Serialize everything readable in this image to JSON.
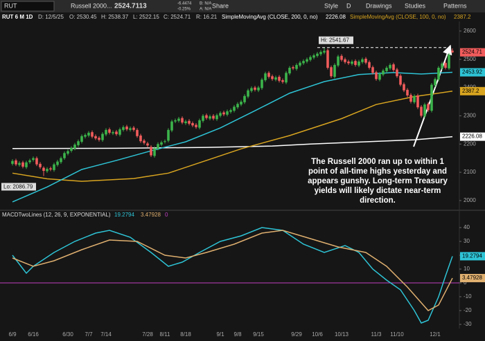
{
  "toolbar": {
    "symbol": "RUT",
    "name": "Russell 2000...",
    "last": "2524.7113",
    "change": "-6.4474",
    "change_pct": "-0.25%",
    "bid": "B: N/A",
    "ask": "A: N/A",
    "buttons": [
      "Share",
      "Style",
      "D",
      "Drawings",
      "Studies",
      "Patterns"
    ]
  },
  "header": {
    "title": "RUT 6 M 1D",
    "date": "D: 12/5/25",
    "open": "O: 2530.45",
    "high": "H: 2538.37",
    "low": "L: 2522.15",
    "close": "C: 2524.71",
    "range": "R: 16.21",
    "sma200": "SimpleMovingAvg (CLOSE, 200, 0, no)",
    "sma100": "SimpleMovingAvg (CLOSE, 100, 0, no)"
  },
  "annotation": "The Russell 2000 ran up to within 1 point of all-time highs yesterday and appears gunshy. Long-term Treasury yields will likely dictate near-term direction.",
  "chart_data": [
    {
      "type": "candlestick",
      "up_color": "#3cb44b",
      "down_color": "#f25c5c",
      "hi_label": "Hi: 2541.67",
      "lo_label": "Lo: 2086.79",
      "xlim": [
        -2,
        129
      ],
      "ylim": [
        1968,
        2634
      ],
      "yticks": [
        2000,
        2100,
        2200,
        2300,
        2400,
        2500,
        2600
      ],
      "xticks": [
        {
          "value": 0,
          "label": "6/9"
        },
        {
          "value": 6,
          "label": "6/16"
        },
        {
          "value": 16,
          "label": "6/30"
        },
        {
          "value": 22,
          "label": "7/7"
        },
        {
          "value": 27,
          "label": "7/14"
        },
        {
          "value": 39,
          "label": "7/28"
        },
        {
          "value": 44,
          "label": "8/11"
        },
        {
          "value": 50,
          "label": "8/18"
        },
        {
          "value": 60,
          "label": "9/1"
        },
        {
          "value": 65,
          "label": "9/8"
        },
        {
          "value": 71,
          "label": "9/15"
        },
        {
          "value": 82,
          "label": "9/29"
        },
        {
          "value": 88,
          "label": "10/6"
        },
        {
          "value": 95,
          "label": "10/13"
        },
        {
          "value": 105,
          "label": "11/3"
        },
        {
          "value": 111,
          "label": "11/10"
        },
        {
          "value": 122,
          "label": "12/1"
        }
      ],
      "candles": [
        [
          2130,
          2146,
          2124,
          2140
        ],
        [
          2142,
          2148,
          2122,
          2128
        ],
        [
          2126,
          2139,
          2120,
          2133
        ],
        [
          2135,
          2141,
          2114,
          2120
        ],
        [
          2118,
          2141,
          2112,
          2135
        ],
        [
          2136,
          2148,
          2130,
          2142
        ],
        [
          2144,
          2156,
          2138,
          2150
        ],
        [
          2150,
          2156,
          2122,
          2128
        ],
        [
          2130,
          2136,
          2112,
          2118
        ],
        [
          2116,
          2121,
          2086.79,
          2105
        ],
        [
          2104,
          2118,
          2098,
          2112
        ],
        [
          2114,
          2120,
          2104,
          2110
        ],
        [
          2108,
          2134,
          2102,
          2128
        ],
        [
          2126,
          2144,
          2120,
          2138
        ],
        [
          2136,
          2156,
          2130,
          2150
        ],
        [
          2150,
          2174,
          2144,
          2168
        ],
        [
          2166,
          2181,
          2160,
          2175
        ],
        [
          2176,
          2192,
          2170,
          2186
        ],
        [
          2184,
          2204,
          2178,
          2198
        ],
        [
          2196,
          2216,
          2190,
          2210
        ],
        [
          2208,
          2234,
          2202,
          2228
        ],
        [
          2226,
          2238,
          2220,
          2232
        ],
        [
          2230,
          2246,
          2224,
          2240
        ],
        [
          2242,
          2248,
          2220,
          2226
        ],
        [
          2228,
          2234,
          2214,
          2220
        ],
        [
          2222,
          2228,
          2209,
          2215
        ],
        [
          2214,
          2242,
          2208,
          2236
        ],
        [
          2234,
          2256,
          2228,
          2250
        ],
        [
          2252,
          2258,
          2234,
          2240
        ],
        [
          2238,
          2248,
          2232,
          2242
        ],
        [
          2244,
          2250,
          2229,
          2235
        ],
        [
          2233,
          2258,
          2227,
          2252
        ],
        [
          2250,
          2266,
          2244,
          2260
        ],
        [
          2262,
          2268,
          2246,
          2252
        ],
        [
          2250,
          2262,
          2244,
          2256
        ],
        [
          2258,
          2264,
          2244,
          2250
        ],
        [
          2250,
          2256,
          2222,
          2228
        ],
        [
          2230,
          2236,
          2204,
          2210
        ],
        [
          2212,
          2218,
          2198,
          2204
        ],
        [
          2202,
          2208,
          2189,
          2195
        ],
        [
          2190,
          2196,
          2154,
          2160
        ],
        [
          2158,
          2191,
          2152,
          2185
        ],
        [
          2184,
          2206,
          2178,
          2200
        ],
        [
          2198,
          2212,
          2192,
          2206
        ],
        [
          2208,
          2216,
          2202,
          2210
        ],
        [
          2212,
          2256,
          2206,
          2250
        ],
        [
          2248,
          2286,
          2242,
          2280
        ],
        [
          2280,
          2290,
          2274,
          2284
        ],
        [
          2282,
          2296,
          2276,
          2290
        ],
        [
          2292,
          2298,
          2270,
          2276
        ],
        [
          2274,
          2286,
          2268,
          2280
        ],
        [
          2282,
          2288,
          2266,
          2272
        ],
        [
          2274,
          2280,
          2260,
          2266
        ],
        [
          2268,
          2274,
          2254,
          2260
        ],
        [
          2258,
          2290,
          2252,
          2284
        ],
        [
          2282,
          2306,
          2276,
          2300
        ],
        [
          2302,
          2308,
          2286,
          2292
        ],
        [
          2290,
          2304,
          2284,
          2298
        ],
        [
          2300,
          2306,
          2284,
          2290
        ],
        [
          2288,
          2308,
          2282,
          2302
        ],
        [
          2300,
          2316,
          2294,
          2310
        ],
        [
          2312,
          2318,
          2299,
          2305
        ],
        [
          2304,
          2322,
          2298,
          2316
        ],
        [
          2314,
          2326,
          2308,
          2320
        ],
        [
          2318,
          2338,
          2312,
          2332
        ],
        [
          2330,
          2348,
          2324,
          2342
        ],
        [
          2340,
          2356,
          2334,
          2350
        ],
        [
          2348,
          2376,
          2342,
          2370
        ],
        [
          2368,
          2396,
          2362,
          2390
        ],
        [
          2388,
          2404,
          2382,
          2398
        ],
        [
          2400,
          2406,
          2386,
          2392
        ],
        [
          2390,
          2406,
          2384,
          2400
        ],
        [
          2398,
          2434,
          2392,
          2428
        ],
        [
          2426,
          2456,
          2420,
          2450
        ],
        [
          2452,
          2458,
          2432,
          2438
        ],
        [
          2440,
          2446,
          2424,
          2430
        ],
        [
          2428,
          2442,
          2422,
          2436
        ],
        [
          2438,
          2444,
          2418,
          2424
        ],
        [
          2426,
          2432,
          2414,
          2420
        ],
        [
          2418,
          2458,
          2412,
          2452
        ],
        [
          2450,
          2476,
          2444,
          2470
        ],
        [
          2472,
          2478,
          2462,
          2468
        ],
        [
          2466,
          2486,
          2460,
          2480
        ],
        [
          2478,
          2494,
          2472,
          2488
        ],
        [
          2486,
          2500,
          2480,
          2494
        ],
        [
          2492,
          2506,
          2486,
          2500
        ],
        [
          2498,
          2514,
          2492,
          2508
        ],
        [
          2506,
          2520,
          2500,
          2514
        ],
        [
          2512,
          2526,
          2506,
          2520
        ],
        [
          2518,
          2532,
          2512,
          2526
        ],
        [
          2524,
          2541.67,
          2518,
          2530
        ],
        [
          2532,
          2538,
          2464,
          2470
        ],
        [
          2472,
          2478,
          2434,
          2440
        ],
        [
          2438,
          2486,
          2432,
          2480
        ],
        [
          2478,
          2516,
          2472,
          2510
        ],
        [
          2512,
          2518,
          2492,
          2498
        ],
        [
          2500,
          2506,
          2484,
          2490
        ],
        [
          2492,
          2498,
          2480,
          2486
        ],
        [
          2484,
          2498,
          2478,
          2492
        ],
        [
          2494,
          2500,
          2474,
          2480
        ],
        [
          2478,
          2498,
          2472,
          2492
        ],
        [
          2490,
          2506,
          2484,
          2500
        ],
        [
          2502,
          2508,
          2482,
          2488
        ],
        [
          2490,
          2496,
          2464,
          2470
        ],
        [
          2472,
          2478,
          2446,
          2452
        ],
        [
          2454,
          2460,
          2424,
          2430
        ],
        [
          2428,
          2454,
          2422,
          2448
        ],
        [
          2446,
          2466,
          2440,
          2460
        ],
        [
          2458,
          2476,
          2452,
          2470
        ],
        [
          2468,
          2486,
          2462,
          2480
        ],
        [
          2482,
          2488,
          2456,
          2462
        ],
        [
          2464,
          2470,
          2434,
          2440
        ],
        [
          2442,
          2448,
          2404,
          2410
        ],
        [
          2412,
          2418,
          2384,
          2390
        ],
        [
          2392,
          2398,
          2366,
          2372
        ],
        [
          2374,
          2380,
          2344,
          2350
        ],
        [
          2348,
          2376,
          2342,
          2370
        ],
        [
          2372,
          2378,
          2324,
          2330
        ],
        [
          2332,
          2338,
          2294,
          2300
        ],
        [
          2298,
          2346,
          2292,
          2340
        ],
        [
          2342,
          2348,
          2314,
          2320
        ],
        [
          2318,
          2416,
          2312,
          2410
        ],
        [
          2408,
          2436,
          2402,
          2430
        ],
        [
          2428,
          2476,
          2422,
          2470
        ],
        [
          2468,
          2491,
          2462,
          2485
        ],
        [
          2487,
          2493,
          2464,
          2470
        ],
        [
          2468,
          2522,
          2462,
          2516
        ],
        [
          2530.45,
          2538.37,
          2522.15,
          2524.71
        ]
      ],
      "series": [
        {
          "color": "#ffffff",
          "x": [
            0,
            30,
            56,
            75,
            86,
            100,
            116,
            127
          ],
          "values": [
            2184,
            2185,
            2188,
            2193,
            2200,
            2207,
            2215,
            2226.08
          ]
        },
        {
          "color": "#d9a520",
          "x": [
            0,
            10,
            20,
            35,
            45,
            56,
            66,
            80,
            95,
            105,
            116,
            127
          ],
          "values": [
            2097,
            2077,
            2068,
            2078,
            2097,
            2142,
            2183,
            2230,
            2290,
            2340,
            2368,
            2387.2
          ]
        },
        {
          "color": "#2ec4d6",
          "x": [
            0,
            10,
            20,
            30,
            40,
            50,
            60,
            70,
            80,
            90,
            100,
            110,
            118,
            127
          ],
          "values": [
            1995,
            2048,
            2110,
            2142,
            2176,
            2208,
            2257,
            2318,
            2380,
            2421,
            2446,
            2453,
            2448,
            2453.92
          ]
        }
      ]
    },
    {
      "type": "line",
      "title": "MACDTwoLines (12, 26, 9, EXPONENTIAL)",
      "xlim": [
        -2,
        129
      ],
      "ylim": [
        -33,
        52
      ],
      "yticks": [
        40,
        30,
        20,
        10,
        0,
        -10,
        -20,
        -30
      ],
      "zero_line": 0,
      "zero_color": "#c040c0",
      "series": [
        {
          "color": "#2ec4d6",
          "x": [
            0,
            4,
            6,
            12,
            18,
            24,
            28,
            34,
            40,
            45,
            49,
            54,
            60,
            66,
            72,
            78,
            84,
            90,
            96,
            100,
            104,
            108,
            112,
            116,
            118,
            120,
            123,
            125,
            127
          ],
          "values": [
            20,
            7,
            12,
            22,
            30,
            36,
            38,
            33,
            22,
            12,
            15,
            22,
            30,
            34,
            40,
            38,
            28,
            22,
            27,
            22,
            10,
            2,
            -5,
            -20,
            -29,
            -27,
            -10,
            5,
            19.2794
          ]
        },
        {
          "color": "#e0b070",
          "x": [
            0,
            6,
            12,
            20,
            28,
            36,
            44,
            50,
            56,
            64,
            72,
            78,
            86,
            94,
            102,
            108,
            114,
            120,
            123,
            127
          ],
          "values": [
            18,
            12,
            16,
            24,
            31,
            30,
            20,
            18,
            22,
            28,
            36,
            38,
            32,
            26,
            22,
            12,
            -3,
            -20,
            -16,
            3.47928
          ]
        }
      ]
    }
  ]
}
